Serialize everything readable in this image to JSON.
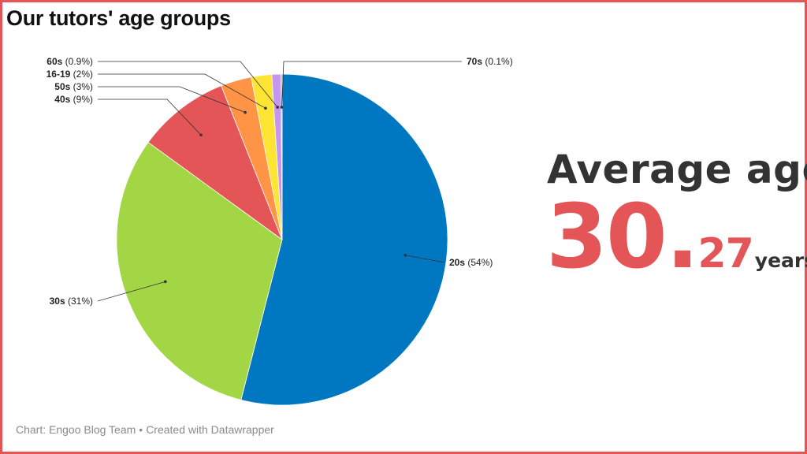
{
  "chart_data": {
    "type": "pie",
    "title": "Our tutors' age groups",
    "slices": [
      {
        "name": "20s",
        "value": 54,
        "label_pct": "(54%)",
        "color": "#0077c1"
      },
      {
        "name": "30s",
        "value": 31,
        "label_pct": "(31%)",
        "color": "#a3d644"
      },
      {
        "name": "40s",
        "value": 9,
        "label_pct": "(9%)",
        "color": "#e35557"
      },
      {
        "name": "50s",
        "value": 3,
        "label_pct": "(3%)",
        "color": "#ff9447"
      },
      {
        "name": "16-19",
        "value": 2,
        "label_pct": "(2%)",
        "color": "#ffe533"
      },
      {
        "name": "60s",
        "value": 0.9,
        "label_pct": "(0.9%)",
        "color": "#c596f0"
      },
      {
        "name": "70s",
        "value": 0.1,
        "label_pct": "(0.1%)",
        "color": "#5b8dd6"
      }
    ]
  },
  "average": {
    "label": "Average age",
    "integer_part": "30.",
    "decimal_part": "27",
    "unit": "years"
  },
  "footer": {
    "credit": "Chart: Engoo Blog Team",
    "separator": "•",
    "tool": "Created with Datawrapper"
  },
  "colors": {
    "frame": "#e35557",
    "accent": "#e35557",
    "dark_text": "#333333"
  }
}
